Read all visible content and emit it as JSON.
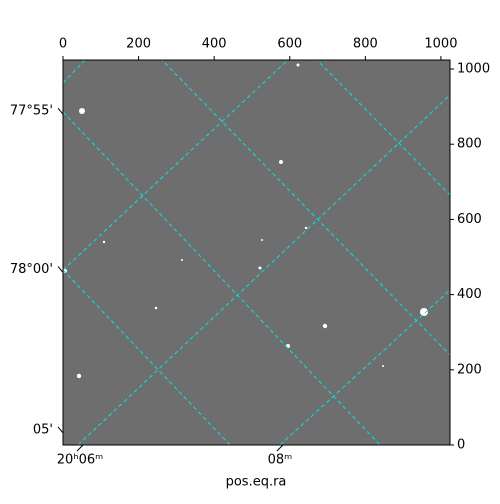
{
  "chart_data": {
    "type": "image",
    "xlabel": "pos.eq.ra",
    "xlim": [
      0,
      1024
    ],
    "ylim": [
      0,
      1024
    ],
    "xticks": [
      0,
      200,
      400,
      600,
      800,
      1000
    ],
    "yticks": [
      0,
      200,
      400,
      600,
      800,
      1000
    ],
    "ra_ticks": [
      {
        "value": 45,
        "label": "20ʰ06ᵐ"
      },
      {
        "value": 574,
        "label": "08ᵐ"
      }
    ],
    "dec_ticks": [
      {
        "value": 888,
        "label": "77°55'"
      },
      {
        "value": 467,
        "label": "78°00'"
      },
      {
        "value": 40,
        "label": "05'"
      }
    ]
  }
}
